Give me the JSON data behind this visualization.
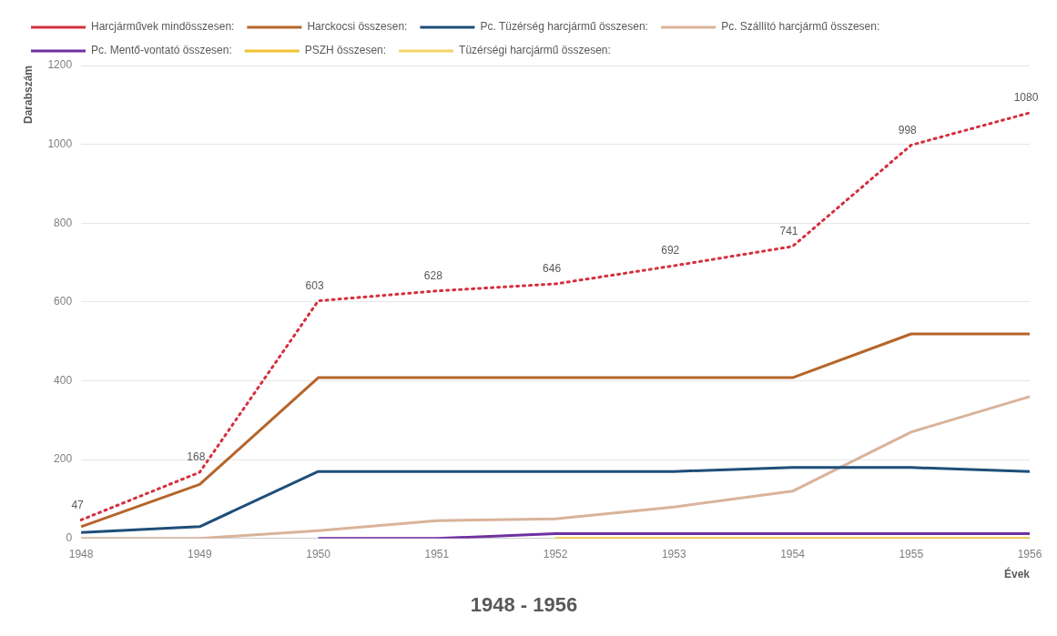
{
  "chart_data": {
    "type": "line",
    "title": "1948 - 1956",
    "xlabel": "Évek",
    "ylabel": "Darabszám",
    "categories": [
      "1948",
      "1949",
      "1950",
      "1951",
      "1952",
      "1953",
      "1954",
      "1955",
      "1956"
    ],
    "ylim": [
      0,
      1200
    ],
    "yticks": [
      0,
      200,
      400,
      600,
      800,
      1000,
      1200
    ],
    "grid": "y",
    "legend": "top",
    "marker": "none",
    "line_style": "solid",
    "series": [
      {
        "name": "Harckocsi összesen:",
        "color": "#b5652a",
        "values": [
          30,
          137,
          408,
          408,
          408,
          408,
          408,
          519,
          519
        ]
      },
      {
        "name": "PSZH összesen:",
        "color": "#f2c12e",
        "values": [
          null,
          null,
          null,
          null,
          0,
          0,
          0,
          0,
          0
        ]
      },
      {
        "name": "Pc. Tüzérség harcjármű összesen:",
        "color": "#1f4e79",
        "values": [
          15,
          30,
          170,
          170,
          170,
          170,
          180,
          180,
          170
        ]
      },
      {
        "name": "Tüzérségi harcjármű összesen:",
        "color": "#f5d46a",
        "values": [
          null,
          null,
          null,
          null,
          null,
          null,
          null,
          null,
          null
        ]
      },
      {
        "name": "Pc. Mentő-vontató összesen:",
        "color": "#7030a0",
        "values": [
          null,
          null,
          0,
          0,
          12,
          12,
          12,
          12,
          12
        ]
      },
      {
        "name": "Pc. Szállító harcjármű összesen:",
        "color": "#d9b39a",
        "values": [
          0,
          0,
          20,
          45,
          50,
          80,
          120,
          270,
          360
        ]
      },
      {
        "name": "Harcjárművek mindösszesen:",
        "color": "#d4303f",
        "line_style": "dotted",
        "values": [
          47,
          168,
          603,
          628,
          646,
          692,
          741,
          998,
          1080
        ],
        "value_labels": [
          "47",
          "168",
          "603",
          "628",
          "646",
          "692",
          "741",
          "998",
          "1080"
        ]
      }
    ]
  }
}
